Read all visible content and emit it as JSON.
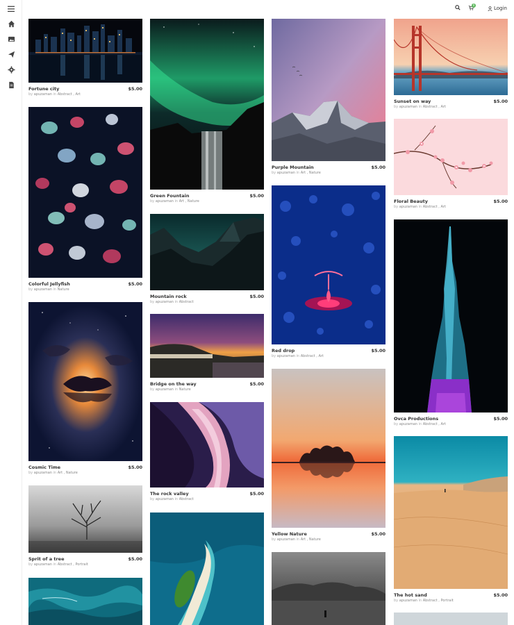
{
  "header": {
    "login_label": "Login",
    "search_icon": "search-icon",
    "cart_icon": "cart-icon",
    "cart_count": "0",
    "user_icon": "user-icon"
  },
  "sidebar": {
    "items": [
      {
        "icon": "menu-icon"
      },
      {
        "icon": "home-icon"
      },
      {
        "icon": "image-icon"
      },
      {
        "icon": "send-icon"
      },
      {
        "icon": "settings-icon"
      },
      {
        "icon": "document-icon"
      }
    ]
  },
  "products": [
    {
      "title": "Fortune city",
      "price": "$5.00",
      "author": "apuzaman",
      "in_word": "in",
      "categories": "Abstract , Art"
    },
    {
      "title": "Colorful Jellyfish",
      "price": "$5.00",
      "author": "apuzaman",
      "in_word": "in",
      "categories": "Nature"
    },
    {
      "title": "Cosmic Time",
      "price": "$5.00",
      "author": "apuzaman",
      "in_word": "in",
      "categories": "Art , Nature"
    },
    {
      "title": "Sprit of a tree",
      "price": "$5.00",
      "author": "apuzaman",
      "in_word": "in",
      "categories": "Abstract , Portrait"
    },
    {
      "title": "Green Fountain",
      "price": "$5.00",
      "author": "apuzaman",
      "in_word": "in",
      "categories": "Art , Nature"
    },
    {
      "title": "Mountain rock",
      "price": "$5.00",
      "author": "apuzaman",
      "in_word": "in",
      "categories": "Abstract"
    },
    {
      "title": "Bridge on the way",
      "price": "$5.00",
      "author": "apuzaman",
      "in_word": "in",
      "categories": "Nature"
    },
    {
      "title": "The rock valley",
      "price": "$5.00",
      "author": "apuzaman",
      "in_word": "in",
      "categories": "Abstract"
    },
    {
      "title": "Purple Mountain",
      "price": "$5.00",
      "author": "apuzaman",
      "in_word": "in",
      "categories": "Art , Nature"
    },
    {
      "title": "Red drop",
      "price": "$5.00",
      "author": "apuzaman",
      "in_word": "in",
      "categories": "Abstract , Art"
    },
    {
      "title": "Yellow Nature",
      "price": "$5.00",
      "author": "apuzaman",
      "in_word": "in",
      "categories": "Art , Nature"
    },
    {
      "title": "Sunset on way",
      "price": "$5.00",
      "author": "apuzaman",
      "in_word": "in",
      "categories": "Abstract , Art"
    },
    {
      "title": "Floral Beauty",
      "price": "$5.00",
      "author": "apuzaman",
      "in_word": "in",
      "categories": "Abstract , Art"
    },
    {
      "title": "Ovca Productions",
      "price": "$5.00",
      "author": "apuzaman",
      "in_word": "in",
      "categories": "Abstract , Art"
    },
    {
      "title": "The hot sand",
      "price": "$5.00",
      "author": "apuzaman",
      "in_word": "in",
      "categories": "Abstract , Portrait"
    }
  ],
  "by_label": "by"
}
